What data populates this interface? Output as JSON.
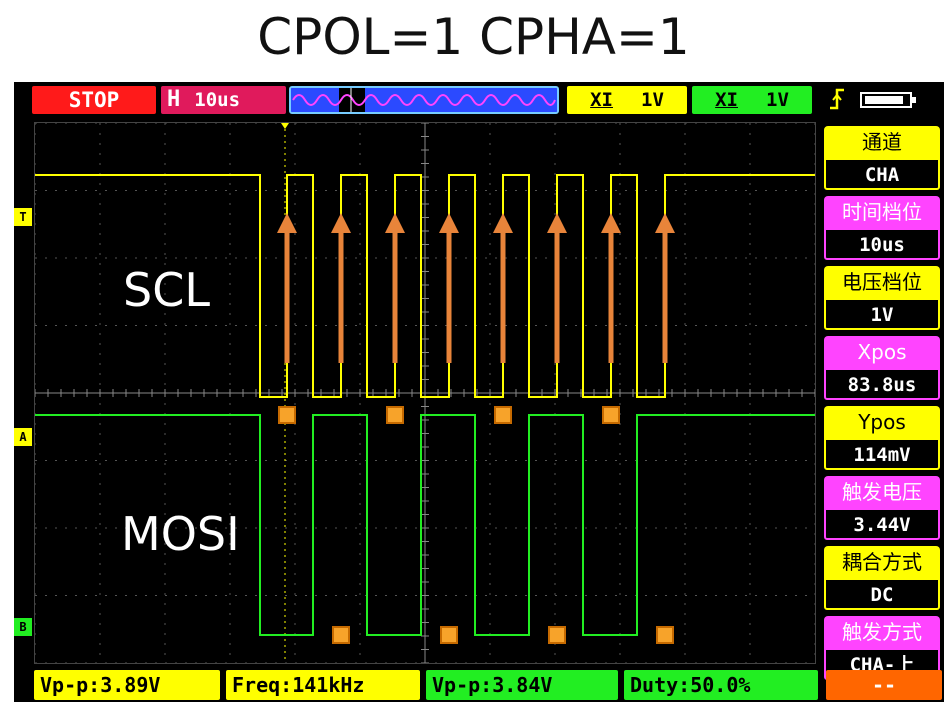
{
  "page_title": "CPOL=1 CPHA=1",
  "top_bar": {
    "run_state": "STOP",
    "timebase_prefix": "H",
    "timebase": "10us",
    "ch1_label": "XI",
    "ch1_volts": "1V",
    "ch2_label": "XI",
    "ch2_volts": "1V",
    "trigger_icon": "trigger-rising-icon",
    "battery_icon": "battery-icon"
  },
  "side_panel": [
    {
      "label": "通道",
      "value": "CHA",
      "color": "#ffff00"
    },
    {
      "label": "时间档位",
      "value": "10us",
      "color": "#ff44ff"
    },
    {
      "label": "电压档位",
      "value": "1V",
      "color": "#ffff00"
    },
    {
      "label": "Xpos",
      "value": "83.8us",
      "color": "#ff44ff"
    },
    {
      "label": "Ypos",
      "value": "114mV",
      "color": "#ffff00"
    },
    {
      "label": "触发电压",
      "value": "3.44V",
      "color": "#ff44ff"
    },
    {
      "label": "耦合方式",
      "value": "DC",
      "color": "#ffff00"
    },
    {
      "label": "触发方式",
      "value": "CHA-上",
      "color": "#ff44ff"
    }
  ],
  "measurements": {
    "ch1_vpp": "Vp-p:3.89V",
    "ch1_freq": "Freq:141kHz",
    "ch2_vpp": "Vp-p:3.84V",
    "ch2_duty": "Duty:50.0%",
    "extra": "--"
  },
  "colors": {
    "ch1": "#ffff00",
    "ch2": "#22ee22",
    "arrow": "#e8843a",
    "marker": "#f7a32a",
    "stop": "#ff1a1a"
  },
  "markers": {
    "T": "T",
    "A": "A",
    "B": "B"
  },
  "annotations": {
    "scl": "SCL",
    "mosi": "MOSI"
  }
}
